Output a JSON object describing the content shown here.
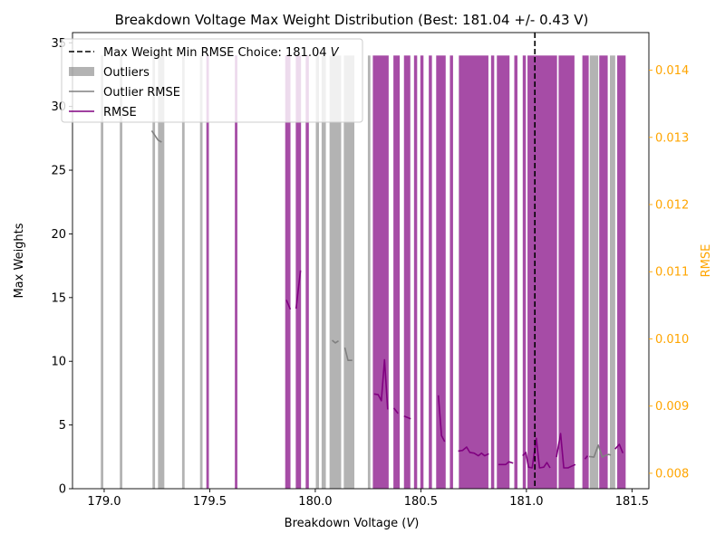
{
  "chart_data": {
    "type": "bar",
    "title": "Breakdown Voltage Max Weight Distribution (Best: 181.04 +/- 0.43 V)",
    "xlabel": "Breakdown Voltage (V)",
    "ylabel": "Max Weights",
    "y2label": "RMSE",
    "xlim": [
      178.85,
      181.58
    ],
    "ylim": [
      0,
      35.8
    ],
    "y2lim": [
      0.00777,
      0.01456
    ],
    "xticks": [
      "179.0",
      "179.5",
      "180.0",
      "180.5",
      "181.0",
      "181.5"
    ],
    "xtick_values": [
      179.0,
      179.5,
      180.0,
      180.5,
      181.0,
      181.5
    ],
    "yticks": [
      "0",
      "5",
      "10",
      "15",
      "20",
      "25",
      "30",
      "35"
    ],
    "ytick_values": [
      0,
      5,
      10,
      15,
      20,
      25,
      30,
      35
    ],
    "y2ticks": [
      "0.008",
      "0.009",
      "0.010",
      "0.011",
      "0.012",
      "0.013",
      "0.014"
    ],
    "y2tick_values": [
      0.008,
      0.009,
      0.01,
      0.011,
      0.012,
      0.013,
      0.014
    ],
    "grid": false,
    "legend_position": "top-left",
    "best_choice": 181.04,
    "bar_height": 34,
    "bars": [
      {
        "x": 178.99,
        "w": 0.012,
        "kind": "outlier"
      },
      {
        "x": 179.08,
        "w": 0.012,
        "kind": "outlier"
      },
      {
        "x": 179.235,
        "w": 0.012,
        "kind": "outlier"
      },
      {
        "x": 179.27,
        "w": 0.03,
        "kind": "outlier"
      },
      {
        "x": 179.375,
        "w": 0.012,
        "kind": "outlier"
      },
      {
        "x": 179.46,
        "w": 0.012,
        "kind": "outlier"
      },
      {
        "x": 179.49,
        "w": 0.012,
        "kind": "main"
      },
      {
        "x": 179.625,
        "w": 0.012,
        "kind": "main"
      },
      {
        "x": 179.87,
        "w": 0.025,
        "kind": "main"
      },
      {
        "x": 179.92,
        "w": 0.025,
        "kind": "main"
      },
      {
        "x": 179.962,
        "w": 0.015,
        "kind": "main"
      },
      {
        "x": 180.01,
        "w": 0.015,
        "kind": "outlier"
      },
      {
        "x": 180.04,
        "w": 0.02,
        "kind": "outlier"
      },
      {
        "x": 180.095,
        "w": 0.055,
        "kind": "outlier"
      },
      {
        "x": 180.16,
        "w": 0.05,
        "kind": "outlier"
      },
      {
        "x": 180.255,
        "w": 0.012,
        "kind": "outlier"
      },
      {
        "x": 180.31,
        "w": 0.075,
        "kind": "main"
      },
      {
        "x": 180.385,
        "w": 0.03,
        "kind": "main"
      },
      {
        "x": 180.435,
        "w": 0.03,
        "kind": "main"
      },
      {
        "x": 180.475,
        "w": 0.015,
        "kind": "main"
      },
      {
        "x": 180.505,
        "w": 0.015,
        "kind": "main"
      },
      {
        "x": 180.545,
        "w": 0.015,
        "kind": "main"
      },
      {
        "x": 180.595,
        "w": 0.045,
        "kind": "main"
      },
      {
        "x": 180.645,
        "w": 0.015,
        "kind": "main"
      },
      {
        "x": 180.75,
        "w": 0.14,
        "kind": "main"
      },
      {
        "x": 180.84,
        "w": 0.015,
        "kind": "main"
      },
      {
        "x": 180.89,
        "w": 0.06,
        "kind": "main"
      },
      {
        "x": 180.95,
        "w": 0.015,
        "kind": "main"
      },
      {
        "x": 180.99,
        "w": 0.015,
        "kind": "main"
      },
      {
        "x": 181.075,
        "w": 0.14,
        "kind": "main"
      },
      {
        "x": 181.19,
        "w": 0.075,
        "kind": "main"
      },
      {
        "x": 181.28,
        "w": 0.03,
        "kind": "main"
      },
      {
        "x": 181.32,
        "w": 0.04,
        "kind": "outlier"
      },
      {
        "x": 181.365,
        "w": 0.04,
        "kind": "main"
      },
      {
        "x": 181.408,
        "w": 0.025,
        "kind": "outlier"
      },
      {
        "x": 181.45,
        "w": 0.04,
        "kind": "main"
      }
    ],
    "series": [
      {
        "name": "RMSE",
        "color": "#800080",
        "segments": [
          [
            [
              179.863,
              0.01058
            ],
            [
              179.882,
              0.01044
            ]
          ],
          [
            [
              179.909,
              0.01045
            ],
            [
              179.93,
              0.01102
            ]
          ],
          [
            [
              180.278,
              0.00918
            ],
            [
              180.298,
              0.00917
            ],
            [
              180.313,
              0.00908
            ],
            [
              180.328,
              0.00969
            ],
            [
              180.343,
              0.00895
            ]
          ],
          [
            [
              180.372,
              0.00897
            ],
            [
              180.392,
              0.00889
            ]
          ],
          [
            [
              180.42,
              0.00885
            ],
            [
              180.452,
              0.00881
            ]
          ],
          [
            [
              180.583,
              0.00916
            ],
            [
              180.598,
              0.00856
            ],
            [
              180.613,
              0.00847
            ]
          ],
          [
            [
              180.677,
              0.00833
            ],
            [
              180.697,
              0.00834
            ],
            [
              180.717,
              0.00839
            ],
            [
              180.732,
              0.00831
            ],
            [
              180.752,
              0.0083
            ],
            [
              180.772,
              0.00826
            ],
            [
              180.787,
              0.0083
            ],
            [
              180.802,
              0.00826
            ],
            [
              180.822,
              0.00829
            ]
          ],
          [
            [
              180.867,
              0.00813
            ],
            [
              180.902,
              0.00813
            ],
            [
              180.917,
              0.00817
            ],
            [
              180.937,
              0.00815
            ]
          ],
          [
            [
              180.982,
              0.00826
            ],
            [
              180.997,
              0.00831
            ],
            [
              181.01,
              0.00809
            ],
            [
              181.027,
              0.00808
            ],
            [
              181.047,
              0.00852
            ],
            [
              181.062,
              0.00808
            ],
            [
              181.082,
              0.00809
            ],
            [
              181.097,
              0.00816
            ],
            [
              181.112,
              0.00808
            ]
          ],
          [
            [
              181.142,
              0.00824
            ],
            [
              181.162,
              0.00859
            ],
            [
              181.177,
              0.00808
            ],
            [
              181.197,
              0.00808
            ],
            [
              181.217,
              0.00811
            ],
            [
              181.232,
              0.00813
            ]
          ],
          [
            [
              181.277,
              0.00821
            ],
            [
              181.29,
              0.00826
            ]
          ],
          [
            [
              181.42,
              0.00836
            ],
            [
              181.44,
              0.00843
            ],
            [
              181.457,
              0.0083
            ]
          ]
        ]
      },
      {
        "name": "Outlier RMSE",
        "color": "#808080",
        "segments": [
          [
            [
              179.225,
              0.0131
            ],
            [
              179.24,
              0.01303
            ],
            [
              179.255,
              0.01296
            ],
            [
              179.272,
              0.01293
            ]
          ],
          [
            [
              180.08,
              0.00998
            ],
            [
              180.095,
              0.00994
            ],
            [
              180.11,
              0.00997
            ]
          ],
          [
            [
              180.14,
              0.00987
            ],
            [
              180.155,
              0.00968
            ],
            [
              180.175,
              0.00968
            ]
          ],
          [
            [
              181.297,
              0.00825
            ],
            [
              181.32,
              0.00824
            ],
            [
              181.34,
              0.00842
            ],
            [
              181.36,
              0.00824
            ],
            [
              181.37,
              0.00826
            ],
            [
              181.39,
              0.00828
            ],
            [
              181.4,
              0.00827
            ]
          ]
        ]
      }
    ],
    "legend": {
      "entries": [
        {
          "key": "best",
          "label": "Max Weight Min RMSE Choice: 181.04",
          "label_suffix": "V"
        },
        {
          "key": "outliers",
          "label": "Outliers"
        },
        {
          "key": "outlier_rmse",
          "label": "Outlier RMSE"
        },
        {
          "key": "rmse",
          "label": "RMSE"
        }
      ]
    },
    "colors": {
      "main_bar": "#800080",
      "outlier_bar": "#808080",
      "right_axis": "#FFA500",
      "best_line": "#000000"
    }
  }
}
